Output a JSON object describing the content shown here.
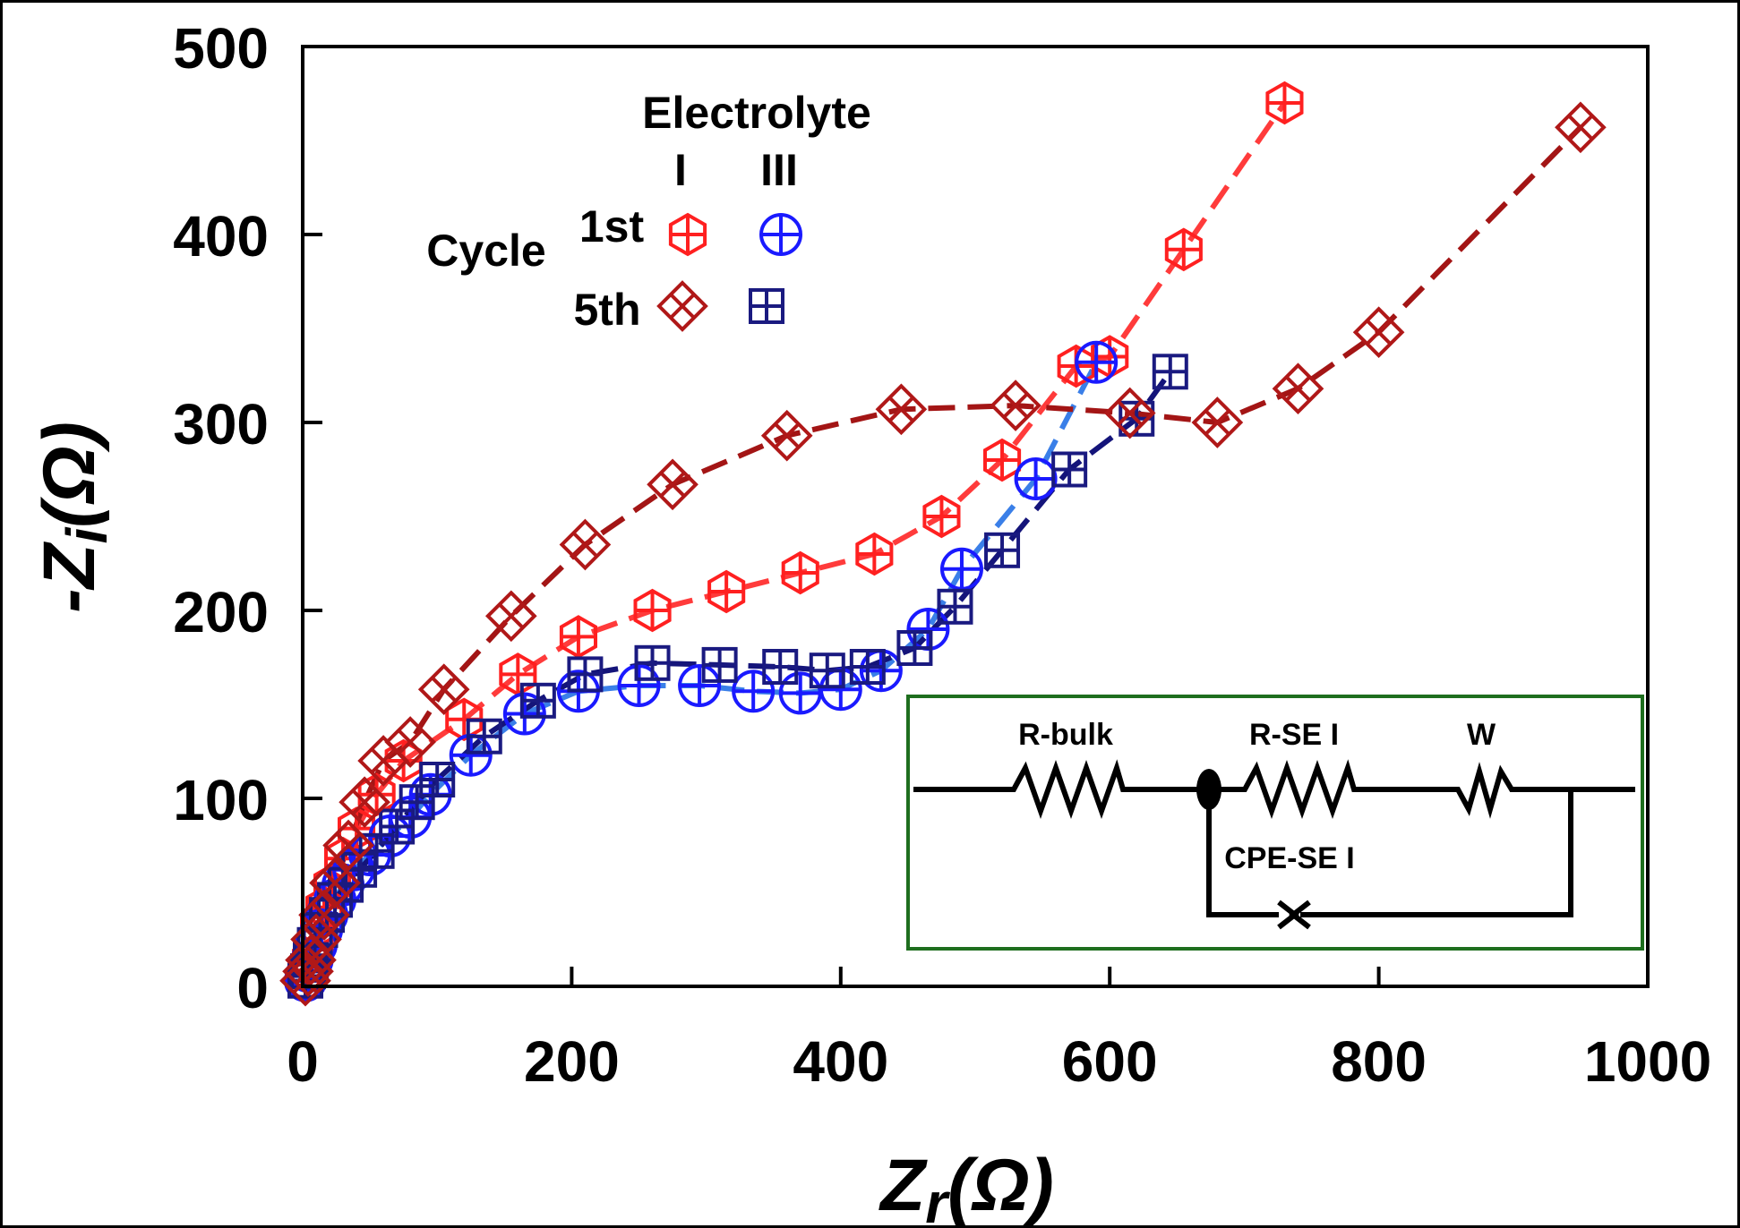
{
  "chart_data": {
    "type": "scatter",
    "xlabel": {
      "main": "Z",
      "sub": "r",
      "unit": "(Ω)"
    },
    "ylabel": {
      "main": "-Z",
      "sub": "i",
      "unit": "(Ω)"
    },
    "xlim": [
      0,
      1000
    ],
    "ylim": [
      0,
      500
    ],
    "xticks": [
      0,
      200,
      400,
      600,
      800,
      1000
    ],
    "yticks": [
      0,
      100,
      200,
      300,
      400,
      500
    ],
    "grid": false,
    "legend": {
      "placement": "top-left",
      "title": "Electrolyte",
      "columns": [
        "I",
        "III"
      ],
      "row_group_label": "Cycle",
      "rows": [
        "1st",
        "5th"
      ]
    },
    "series": [
      {
        "key": "I-1st",
        "color": "#ff2020",
        "line_color": "#ff3b3b",
        "marker": "hexagon-cross",
        "points": [
          [
            2,
            3
          ],
          [
            4,
            8
          ],
          [
            6,
            14
          ],
          [
            9,
            22
          ],
          [
            12,
            32
          ],
          [
            16,
            42
          ],
          [
            22,
            54
          ],
          [
            30,
            68
          ],
          [
            40,
            84
          ],
          [
            55,
            102
          ],
          [
            75,
            120
          ],
          [
            120,
            142
          ],
          [
            160,
            166
          ],
          [
            205,
            186
          ],
          [
            260,
            200
          ],
          [
            315,
            210
          ],
          [
            370,
            220
          ],
          [
            425,
            230
          ],
          [
            475,
            250
          ],
          [
            520,
            280
          ],
          [
            575,
            330
          ],
          [
            600,
            335
          ],
          [
            655,
            392
          ],
          [
            730,
            470
          ]
        ]
      },
      {
        "key": "I-5th",
        "color": "#b01818",
        "line_color": "#a31515",
        "marker": "diamond-cross",
        "points": [
          [
            2,
            3
          ],
          [
            4,
            8
          ],
          [
            6,
            14
          ],
          [
            10,
            25
          ],
          [
            16,
            38
          ],
          [
            24,
            55
          ],
          [
            34,
            75
          ],
          [
            46,
            98
          ],
          [
            60,
            120
          ],
          [
            80,
            130
          ],
          [
            105,
            158
          ],
          [
            155,
            197
          ],
          [
            210,
            235
          ],
          [
            275,
            267
          ],
          [
            360,
            293
          ],
          [
            445,
            307
          ],
          [
            530,
            309
          ],
          [
            615,
            305
          ],
          [
            680,
            300
          ],
          [
            740,
            318
          ],
          [
            800,
            348
          ],
          [
            950,
            457
          ]
        ]
      },
      {
        "key": "III-1st",
        "color": "#1a1aff",
        "line_color": "#3a7fe8",
        "marker": "circle-cross",
        "points": [
          [
            2,
            3
          ],
          [
            4,
            8
          ],
          [
            7,
            14
          ],
          [
            10,
            22
          ],
          [
            14,
            30
          ],
          [
            18,
            38
          ],
          [
            24,
            46
          ],
          [
            30,
            54
          ],
          [
            38,
            62
          ],
          [
            50,
            70
          ],
          [
            65,
            80
          ],
          [
            80,
            90
          ],
          [
            95,
            102
          ],
          [
            125,
            123
          ],
          [
            165,
            145
          ],
          [
            205,
            157
          ],
          [
            250,
            160
          ],
          [
            295,
            160
          ],
          [
            335,
            157
          ],
          [
            370,
            156
          ],
          [
            400,
            158
          ],
          [
            430,
            168
          ],
          [
            465,
            190
          ],
          [
            490,
            222
          ],
          [
            545,
            270
          ],
          [
            590,
            332
          ]
        ]
      },
      {
        "key": "III-5th",
        "color": "#1a1a80",
        "line_color": "#14147a",
        "marker": "square-cross",
        "points": [
          [
            2,
            3
          ],
          [
            4,
            8
          ],
          [
            6,
            14
          ],
          [
            9,
            22
          ],
          [
            13,
            30
          ],
          [
            18,
            38
          ],
          [
            24,
            46
          ],
          [
            32,
            54
          ],
          [
            42,
            62
          ],
          [
            55,
            72
          ],
          [
            70,
            85
          ],
          [
            85,
            98
          ],
          [
            100,
            110
          ],
          [
            135,
            133
          ],
          [
            175,
            152
          ],
          [
            210,
            166
          ],
          [
            260,
            172
          ],
          [
            310,
            171
          ],
          [
            355,
            170
          ],
          [
            390,
            168
          ],
          [
            420,
            170
          ],
          [
            455,
            180
          ],
          [
            485,
            202
          ],
          [
            520,
            232
          ],
          [
            570,
            275
          ],
          [
            620,
            302
          ],
          [
            645,
            327
          ]
        ]
      }
    ],
    "inset": {
      "border_color": "#1e6e1e",
      "labels": {
        "r_bulk": "R-bulk",
        "r_sei": "R-SE I",
        "w": "W",
        "cpe_sei": "CPE-SE I"
      }
    }
  }
}
